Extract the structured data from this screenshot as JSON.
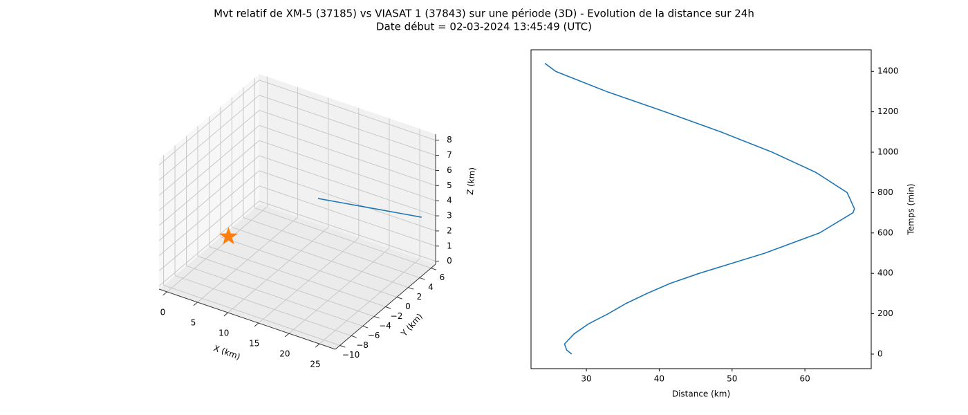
{
  "title": [
    "Mvt relatif de XM-5 (37185) vs VIASAT 1 (37843) sur une période (3D) - Evolution de la distance sur 24h",
    "Date début = 02-03-2024 13:45:49 (UTC)"
  ],
  "chart_data": [
    {
      "type": "line3d",
      "xlabel": "X (km)",
      "ylabel": "Y (km)",
      "zlabel": "Z (km)",
      "xlim": [
        -1.3,
        27.6
      ],
      "ylim": [
        -10.8,
        6.8
      ],
      "zlim": [
        -0.2,
        8.4
      ],
      "xticks": [
        0,
        5,
        10,
        15,
        20,
        25
      ],
      "yticks": [
        {
          "value": -10,
          "label": "−10"
        },
        {
          "value": -8,
          "label": "−8"
        },
        {
          "value": -6,
          "label": "−6"
        },
        {
          "value": -4,
          "label": "−4"
        },
        {
          "value": -2,
          "label": "−2"
        },
        0,
        2,
        4,
        6
      ],
      "zticks": [
        0,
        1,
        2,
        3,
        4,
        5,
        6,
        7,
        8
      ],
      "grid": true,
      "series": [
        {
          "color": "#1f77b4",
          "marker": "none",
          "x": [
            10,
            13.4,
            16.8,
            20.2,
            23.6,
            27
          ],
          "y": [
            5,
            5,
            5,
            5,
            5,
            5
          ],
          "z": [
            2.3,
            2.52,
            2.74,
            2.96,
            3.18,
            3.4
          ]
        },
        {
          "color": "#ff7f0e",
          "marker": "star",
          "x": [
            0
          ],
          "y": [
            0
          ],
          "z": [
            0
          ]
        }
      ]
    },
    {
      "type": "line",
      "xlabel": "Distance (km)",
      "ylabel": "Temps (min)",
      "yaxis_side": "right",
      "xlim": [
        22.4,
        69.1
      ],
      "ylim": [
        -72,
        1507
      ],
      "xticks": [
        30,
        40,
        50,
        60
      ],
      "yticks": [
        0,
        200,
        400,
        600,
        800,
        1000,
        1200,
        1400
      ],
      "grid": false,
      "series": [
        {
          "color": "#1f77b4",
          "x": [
            28.0,
            27.3,
            27.0,
            28.3,
            30.3,
            33.0,
            35.4,
            38.3,
            41.5,
            45.5,
            54.5,
            62.0,
            66.6,
            66.8,
            65.8,
            61.5,
            55.5,
            48.5,
            40.8,
            32.8,
            25.8,
            24.3
          ],
          "y": [
            0,
            20,
            50,
            100,
            150,
            200,
            250,
            300,
            350,
            400,
            500,
            600,
            700,
            720,
            800,
            900,
            1000,
            1100,
            1200,
            1300,
            1400,
            1440
          ]
        }
      ]
    }
  ]
}
